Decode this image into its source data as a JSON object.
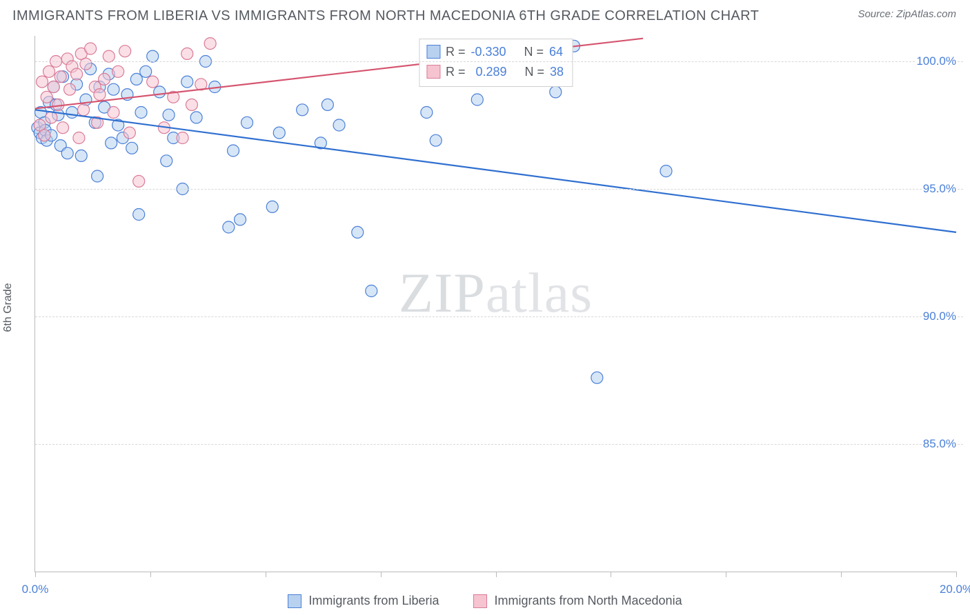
{
  "header": {
    "title": "IMMIGRANTS FROM LIBERIA VS IMMIGRANTS FROM NORTH MACEDONIA 6TH GRADE CORRELATION CHART",
    "source": "Source: ZipAtlas.com"
  },
  "ylabel": "6th Grade",
  "watermark_left": "ZIP",
  "watermark_right": "atlas",
  "chart": {
    "type": "scatter",
    "background_color": "#ffffff",
    "grid_color": "#d7d7d7",
    "axis_color": "#b9b9b9",
    "title_fontsize": 20,
    "label_fontsize": 16,
    "tick_fontsize": 17,
    "tick_label_color": "#4a7fd8",
    "xlim": [
      0,
      20
    ],
    "ylim": [
      80,
      101
    ],
    "xticks": [
      0,
      2.5,
      5.0,
      7.5,
      10.0,
      12.5,
      15.0,
      17.5,
      20.0
    ],
    "xtick_labels": [
      "0.0%",
      "",
      "",
      "",
      "",
      "",
      "",
      "",
      "20.0%"
    ],
    "yticks": [
      85,
      90,
      95,
      100
    ],
    "ytick_labels": [
      "85.0%",
      "90.0%",
      "95.0%",
      "100.0%"
    ],
    "marker_radius": 8.5,
    "marker_stroke_width": 1.2,
    "line_width": 2.2,
    "series": [
      {
        "name": "Immigrants from Liberia",
        "fill_color": "#b7d1ef",
        "stroke_color": "#4a7fd8",
        "line_color": "#2f6fd0",
        "fill_opacity": 0.55,
        "r_value": "-0.330",
        "n_value": "64",
        "trend": {
          "x1": 0,
          "y1": 98.1,
          "x2": 20,
          "y2": 93.3
        },
        "points": [
          [
            0.05,
            97.4
          ],
          [
            0.1,
            97.2
          ],
          [
            0.12,
            98.0
          ],
          [
            0.15,
            97.0
          ],
          [
            0.2,
            97.6
          ],
          [
            0.22,
            97.3
          ],
          [
            0.25,
            96.9
          ],
          [
            0.3,
            98.4
          ],
          [
            0.35,
            97.1
          ],
          [
            0.4,
            99.0
          ],
          [
            0.45,
            98.3
          ],
          [
            0.5,
            97.9
          ],
          [
            0.55,
            96.7
          ],
          [
            0.6,
            99.4
          ],
          [
            0.7,
            96.4
          ],
          [
            0.8,
            98.0
          ],
          [
            0.9,
            99.1
          ],
          [
            1.0,
            96.3
          ],
          [
            1.1,
            98.5
          ],
          [
            1.2,
            99.7
          ],
          [
            1.3,
            97.6
          ],
          [
            1.35,
            95.5
          ],
          [
            1.4,
            99.0
          ],
          [
            1.5,
            98.2
          ],
          [
            1.6,
            99.5
          ],
          [
            1.65,
            96.8
          ],
          [
            1.7,
            98.9
          ],
          [
            1.8,
            97.5
          ],
          [
            1.9,
            97.0
          ],
          [
            2.0,
            98.7
          ],
          [
            2.1,
            96.6
          ],
          [
            2.2,
            99.3
          ],
          [
            2.25,
            94.0
          ],
          [
            2.3,
            98.0
          ],
          [
            2.4,
            99.6
          ],
          [
            2.55,
            100.2
          ],
          [
            2.7,
            98.8
          ],
          [
            2.85,
            96.1
          ],
          [
            2.9,
            97.9
          ],
          [
            3.0,
            97.0
          ],
          [
            3.2,
            95.0
          ],
          [
            3.3,
            99.2
          ],
          [
            3.5,
            97.8
          ],
          [
            3.7,
            100.0
          ],
          [
            3.9,
            99.0
          ],
          [
            4.2,
            93.5
          ],
          [
            4.3,
            96.5
          ],
          [
            4.45,
            93.8
          ],
          [
            4.6,
            97.6
          ],
          [
            5.15,
            94.3
          ],
          [
            5.3,
            97.2
          ],
          [
            5.8,
            98.1
          ],
          [
            6.2,
            96.8
          ],
          [
            6.35,
            98.3
          ],
          [
            6.6,
            97.5
          ],
          [
            7.0,
            93.3
          ],
          [
            7.3,
            91.0
          ],
          [
            8.5,
            98.0
          ],
          [
            8.7,
            96.9
          ],
          [
            9.6,
            98.5
          ],
          [
            11.3,
            98.8
          ],
          [
            12.2,
            87.6
          ],
          [
            13.7,
            95.7
          ],
          [
            11.7,
            100.6
          ]
        ]
      },
      {
        "name": "Immigrants from North Macedonia",
        "fill_color": "#f6c4d1",
        "stroke_color": "#d97b97",
        "line_color": "#d5546f",
        "fill_opacity": 0.55,
        "r_value": "0.289",
        "n_value": "38",
        "trend": {
          "x1": 0,
          "y1": 98.15,
          "x2": 13.2,
          "y2": 100.9
        },
        "points": [
          [
            0.1,
            97.5
          ],
          [
            0.15,
            99.2
          ],
          [
            0.2,
            97.1
          ],
          [
            0.25,
            98.6
          ],
          [
            0.3,
            99.6
          ],
          [
            0.35,
            97.8
          ],
          [
            0.4,
            99.0
          ],
          [
            0.45,
            100.0
          ],
          [
            0.5,
            98.3
          ],
          [
            0.55,
            99.4
          ],
          [
            0.6,
            97.4
          ],
          [
            0.7,
            100.1
          ],
          [
            0.75,
            98.9
          ],
          [
            0.8,
            99.8
          ],
          [
            0.9,
            99.5
          ],
          [
            0.95,
            97.0
          ],
          [
            1.0,
            100.3
          ],
          [
            1.05,
            98.1
          ],
          [
            1.1,
            99.9
          ],
          [
            1.2,
            100.5
          ],
          [
            1.3,
            99.0
          ],
          [
            1.35,
            97.6
          ],
          [
            1.4,
            98.7
          ],
          [
            1.5,
            99.3
          ],
          [
            1.6,
            100.2
          ],
          [
            1.7,
            98.0
          ],
          [
            1.8,
            99.6
          ],
          [
            1.95,
            100.4
          ],
          [
            2.05,
            97.2
          ],
          [
            2.25,
            95.3
          ],
          [
            2.55,
            99.2
          ],
          [
            2.8,
            97.4
          ],
          [
            3.0,
            98.6
          ],
          [
            3.2,
            97.0
          ],
          [
            3.3,
            100.3
          ],
          [
            3.4,
            98.3
          ],
          [
            3.6,
            99.1
          ],
          [
            3.8,
            100.7
          ]
        ]
      }
    ]
  },
  "legend_top": {
    "r_label": "R =",
    "n_label": "N ="
  },
  "legend_bottom": [
    "Immigrants from Liberia",
    "Immigrants from North Macedonia"
  ]
}
